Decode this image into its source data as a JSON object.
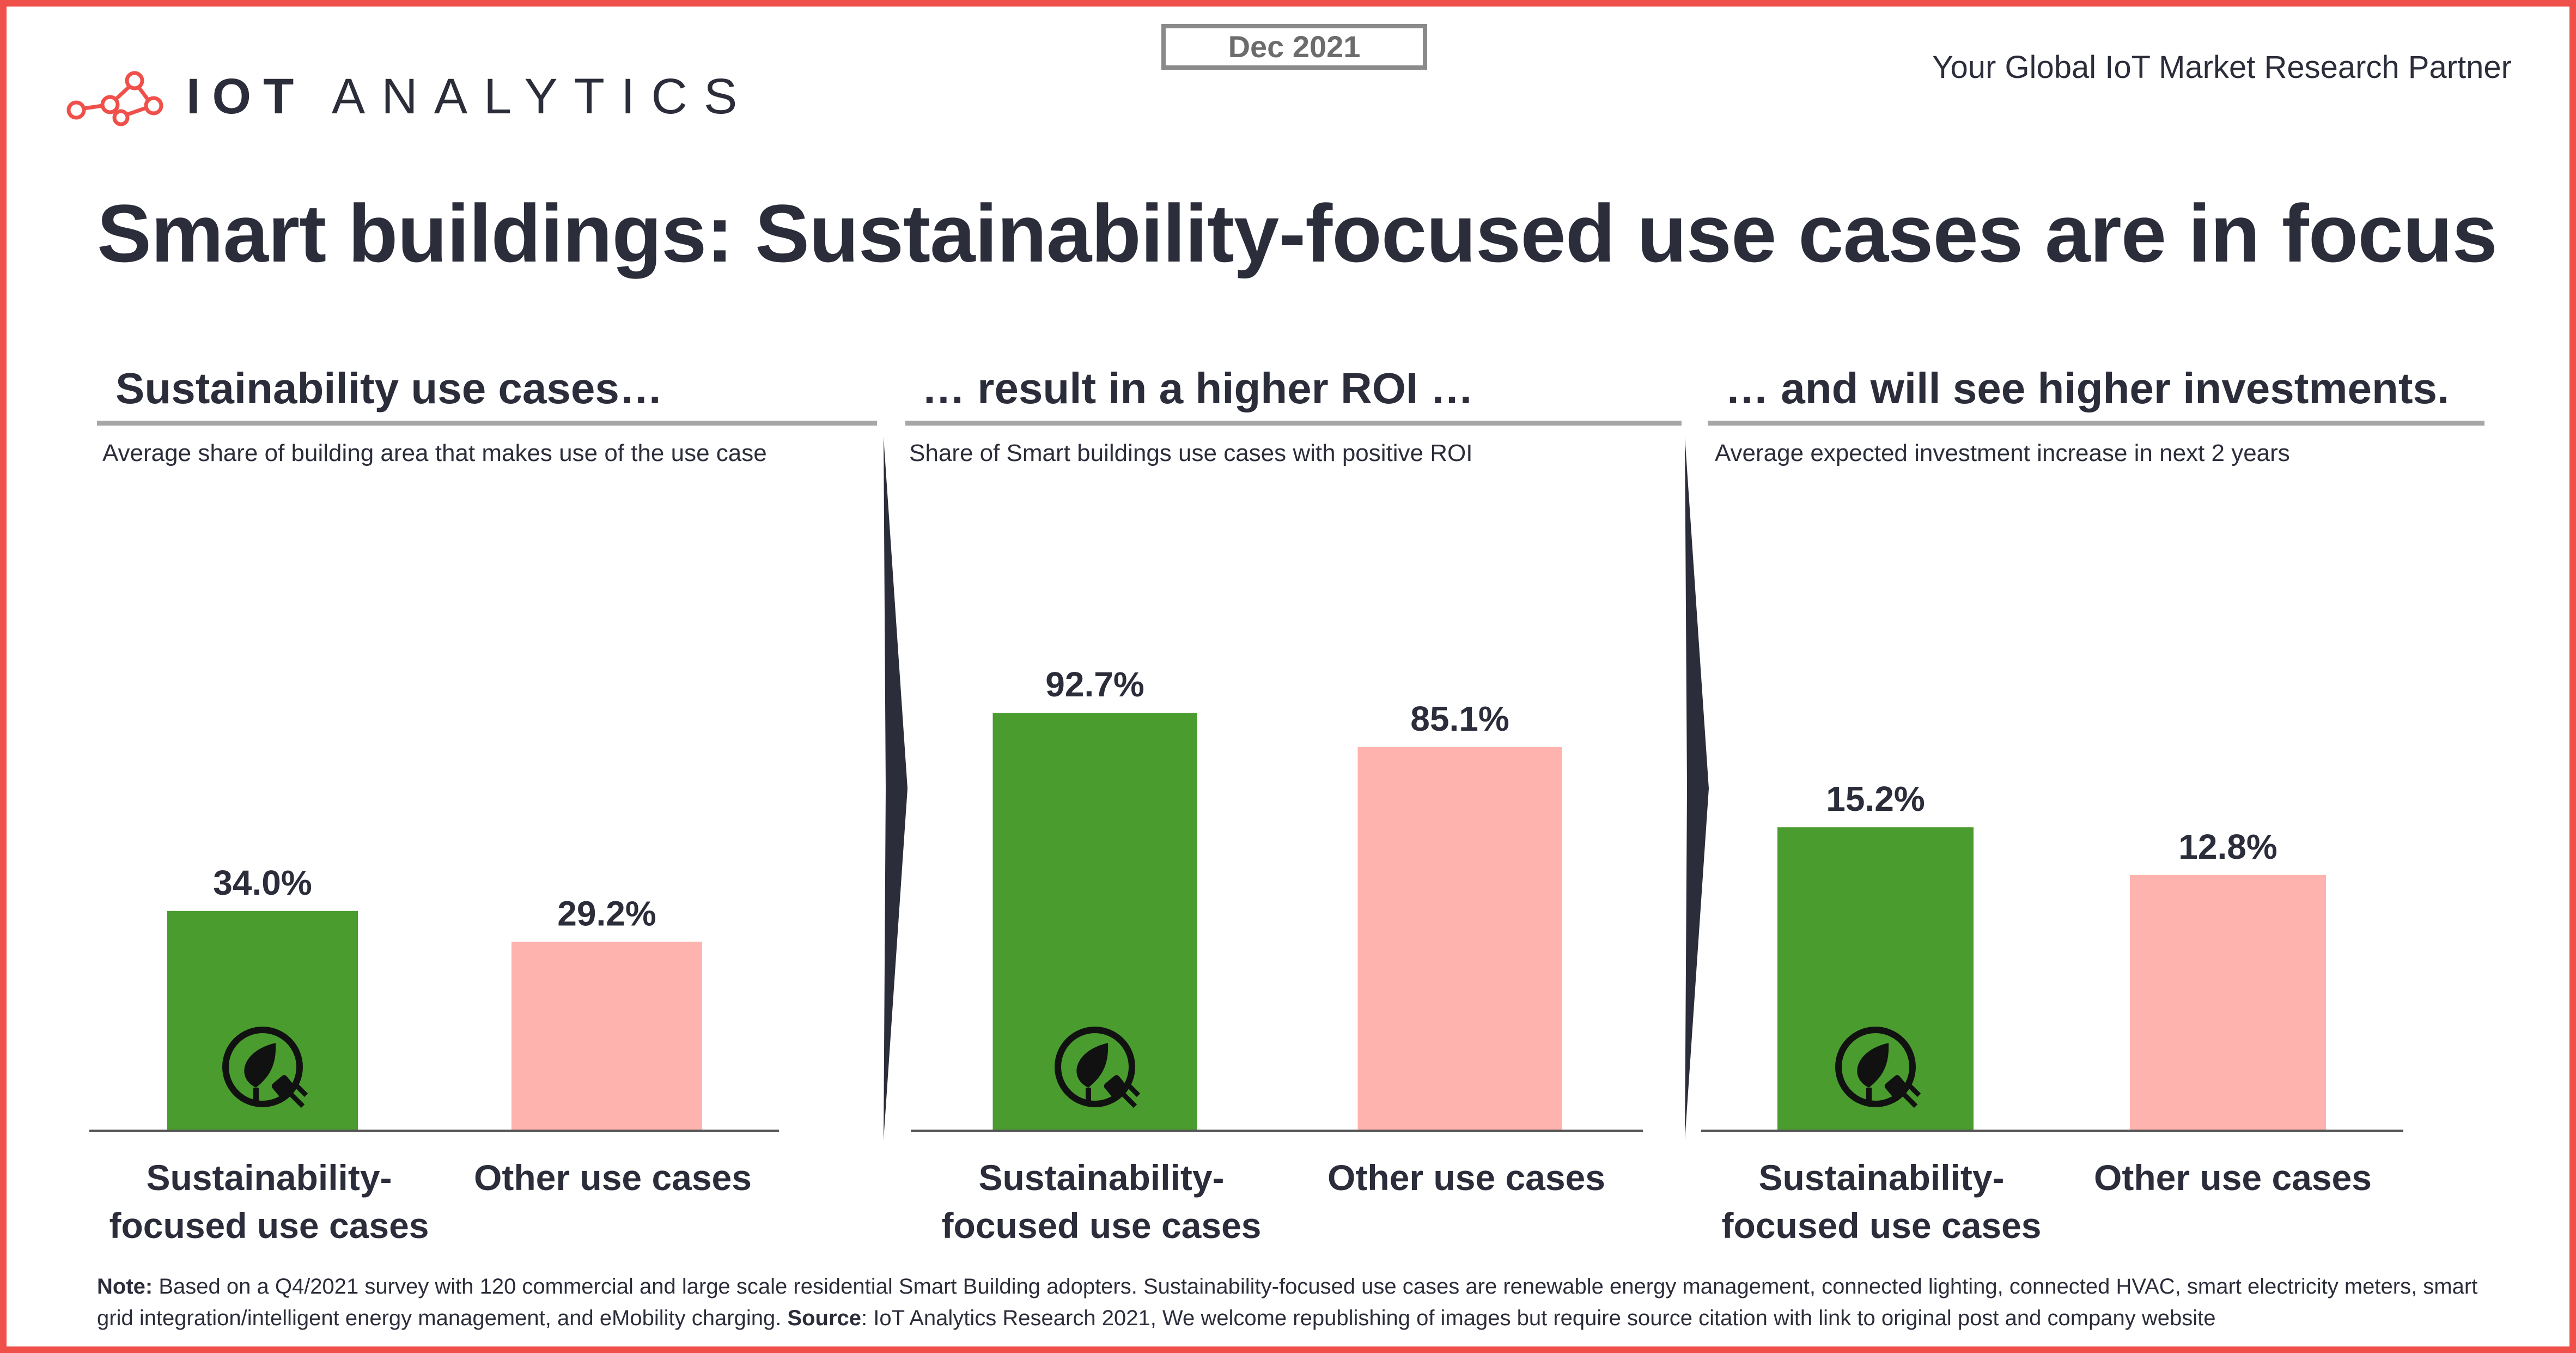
{
  "header": {
    "logo_bold": "IOT",
    "logo_rest": "ANALYTICS",
    "date": "Dec 2021",
    "tagline": "Your Global IoT Market Research Partner"
  },
  "title": "Smart buildings: Sustainability-focused use cases are in focus",
  "colors": {
    "sustainability_bar": "#4a9c2f",
    "other_bar": "#ffb3ae",
    "text": "#2b2d3a",
    "frame": "#f0504a",
    "rule": "#a6a6a6"
  },
  "chart_data": [
    {
      "type": "bar",
      "title": "Sustainability use cases…",
      "subtitle": "Average share of building area that makes use of the use case",
      "categories": [
        "Sustainability-focused use cases",
        "Other use cases"
      ],
      "values": [
        34.0,
        29.2
      ],
      "value_labels": [
        "34.0%",
        "29.2%"
      ],
      "unit": "%",
      "bar_icon": [
        "leaf-plug-icon",
        ""
      ]
    },
    {
      "type": "bar",
      "title": "… result in a higher ROI …",
      "subtitle": "Share of Smart buildings use cases with positive ROI",
      "categories": [
        "Sustainability-focused use cases",
        "Other use cases"
      ],
      "values": [
        92.7,
        85.1
      ],
      "value_labels": [
        "92.7%",
        "85.1%"
      ],
      "unit": "%",
      "bar_icon": [
        "leaf-plug-icon",
        ""
      ]
    },
    {
      "type": "bar",
      "title": "… and will see higher investments.",
      "subtitle": "Average expected investment increase in next 2 years",
      "categories": [
        "Sustainability-focused use cases",
        "Other use cases"
      ],
      "values": [
        15.2,
        12.8
      ],
      "value_labels": [
        "15.2%",
        "12.8%"
      ],
      "unit": "%",
      "bar_icon": [
        "leaf-plug-icon",
        ""
      ]
    }
  ],
  "category_lines": [
    [
      "Sustainability-",
      "focused use cases"
    ],
    [
      "Other use cases"
    ]
  ],
  "note": {
    "note_label": "Note:",
    "note_text": " Based on a Q4/2021 survey with 120 commercial and large scale residential Smart Building adopters. Sustainability-focused use cases are renewable energy management, connected lighting, connected HVAC, smart electricity meters, smart grid integration/intelligent energy management, and eMobility charging. ",
    "source_label": "Source",
    "source_text": ": IoT Analytics Research 2021, We welcome republishing of images but require source citation with link to original post and company website"
  }
}
